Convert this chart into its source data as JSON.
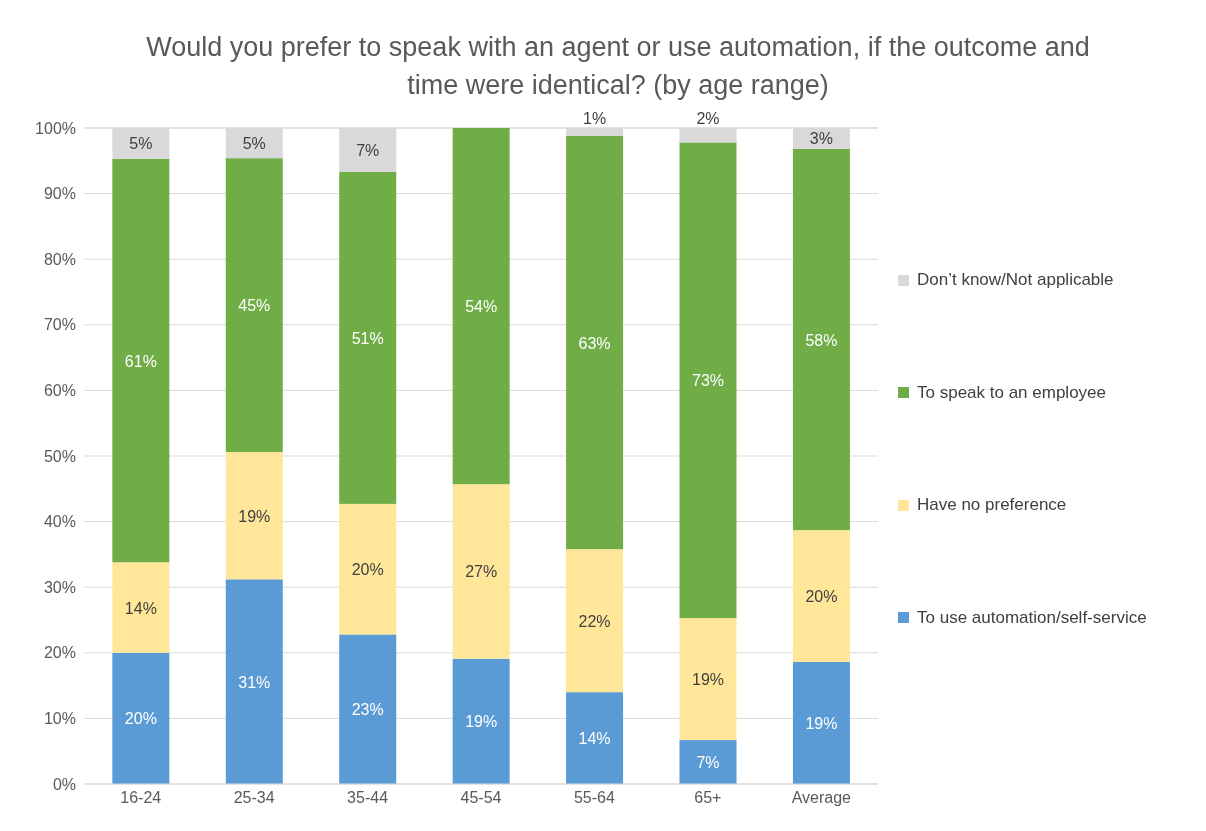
{
  "chart_data": {
    "type": "bar",
    "title": "Would you prefer to speak with an agent or use automation, if the outcome and time were identical? (by age range)",
    "categories": [
      "16-24",
      "25-34",
      "35-44",
      "45-54",
      "55-64",
      "65+",
      "Average"
    ],
    "stacked": true,
    "grid": "y",
    "legend": "right",
    "ylim": [
      0,
      100
    ],
    "yticks": [
      {
        "value": 0,
        "label": "0%"
      },
      {
        "value": 10,
        "label": "10%"
      },
      {
        "value": 20,
        "label": "20%"
      },
      {
        "value": 30,
        "label": "30%"
      },
      {
        "value": 40,
        "label": "40%"
      },
      {
        "value": 50,
        "label": "50%"
      },
      {
        "value": 60,
        "label": "60%"
      },
      {
        "value": 70,
        "label": "70%"
      },
      {
        "value": 80,
        "label": "80%"
      },
      {
        "value": 90,
        "label": "90%"
      },
      {
        "value": 100,
        "label": "100%"
      }
    ],
    "series": [
      {
        "name": "To use automation/self-service",
        "color": "#5b9bd5",
        "values": [
          20,
          31.2,
          22.8,
          19.1,
          14,
          6.7,
          18.6
        ],
        "value_labels": [
          "20%",
          "31%",
          "23%",
          "19%",
          "14%",
          "7%",
          "19%"
        ]
      },
      {
        "name": "Have no preference",
        "color": "#ffe699",
        "values": [
          13.8,
          19.4,
          19.9,
          26.6,
          21.8,
          18.6,
          20.1
        ],
        "value_labels": [
          "14%",
          "19%",
          "20%",
          "27%",
          "22%",
          "19%",
          "20%"
        ]
      },
      {
        "name": "To speak to an employee",
        "color": "#70ad47",
        "values": [
          61.5,
          44.8,
          50.6,
          54.3,
          63,
          72.5,
          58.1
        ],
        "value_labels": [
          "61%",
          "45%",
          "51%",
          "54%",
          "63%",
          "73%",
          "58%"
        ]
      },
      {
        "name": "Don’t know/Not applicable",
        "color": "#d9d9d9",
        "values": [
          4.7,
          4.6,
          6.7,
          null,
          1.2,
          2.2,
          3.2
        ],
        "value_labels": [
          "5%",
          "5%",
          "7%",
          null,
          "1%",
          "2%",
          "3%"
        ]
      }
    ]
  }
}
